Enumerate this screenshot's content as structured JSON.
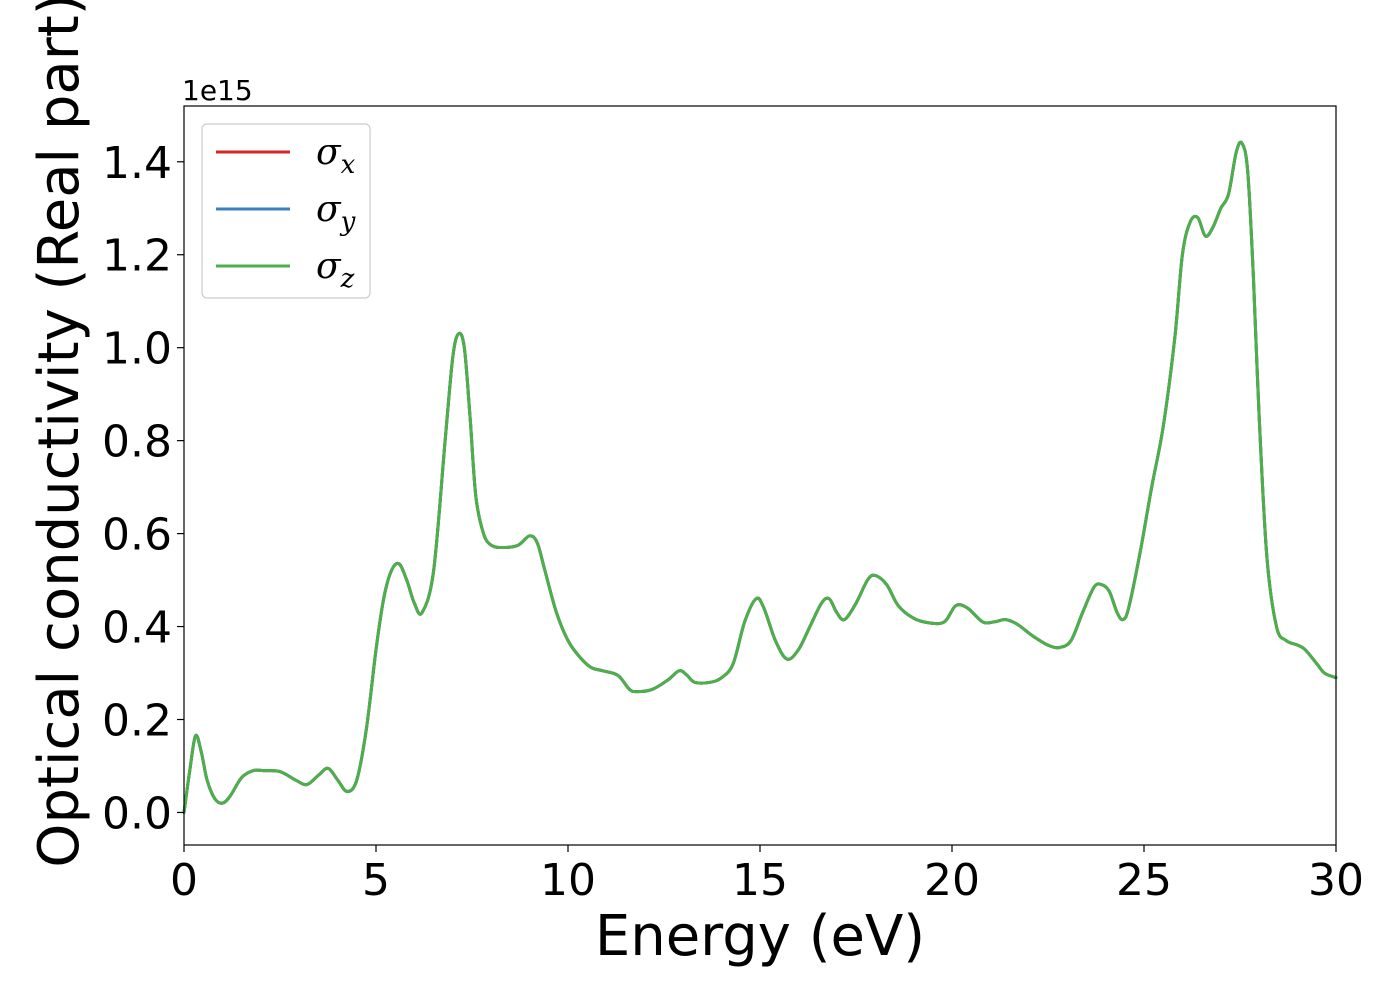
{
  "chart_data": {
    "type": "line",
    "xlabel": "Energy (eV)",
    "ylabel": "Optical conductivity (Real part)",
    "y_offset_text": "1e15",
    "xlim": [
      0,
      30
    ],
    "ylim": [
      -0.07,
      1.52
    ],
    "x_ticks": [
      0,
      5,
      10,
      15,
      20,
      25,
      30
    ],
    "x_tick_labels": [
      "0",
      "5",
      "10",
      "15",
      "20",
      "25",
      "30"
    ],
    "y_ticks": [
      0.0,
      0.2,
      0.4,
      0.6,
      0.8,
      1.0,
      1.2,
      1.4
    ],
    "y_tick_labels": [
      "0.0",
      "0.2",
      "0.4",
      "0.6",
      "0.8",
      "1.0",
      "1.2",
      "1.4"
    ],
    "grid": false,
    "legend_position": "top-left",
    "series": [
      {
        "name": "σ",
        "subscript": "x",
        "color": "#d62728",
        "x": [
          0,
          0.15,
          0.3,
          0.45,
          0.6,
          0.8,
          1.0,
          1.2,
          1.5,
          1.8,
          2.1,
          2.5,
          2.9,
          3.2,
          3.5,
          3.75,
          4.0,
          4.25,
          4.5,
          4.75,
          5.0,
          5.2,
          5.4,
          5.6,
          5.8,
          6.0,
          6.2,
          6.5,
          6.8,
          7.0,
          7.15,
          7.3,
          7.45,
          7.6,
          7.8,
          8.0,
          8.3,
          8.7,
          9.0,
          9.2,
          9.4,
          9.7,
          10.0,
          10.3,
          10.6,
          10.9,
          11.3,
          11.6,
          11.8,
          12.2,
          12.6,
          12.9,
          13.1,
          13.3,
          13.7,
          14.0,
          14.3,
          14.6,
          14.9,
          15.1,
          15.4,
          15.7,
          16.0,
          16.3,
          16.6,
          16.8,
          17.0,
          17.2,
          17.5,
          17.8,
          18.0,
          18.3,
          18.6,
          19.0,
          19.4,
          19.8,
          20.1,
          20.4,
          20.8,
          21.1,
          21.4,
          21.7,
          22.1,
          22.5,
          22.8,
          23.1,
          23.4,
          23.7,
          23.9,
          24.1,
          24.3,
          24.45,
          24.6,
          24.9,
          25.2,
          25.5,
          25.8,
          26.0,
          26.2,
          26.4,
          26.6,
          26.8,
          27.0,
          27.2,
          27.4,
          27.55,
          27.7,
          27.85,
          28.0,
          28.2,
          28.45,
          28.7,
          29.0,
          29.2,
          29.5,
          29.7,
          30.0
        ],
        "y": [
          0.0,
          0.09,
          0.165,
          0.13,
          0.07,
          0.03,
          0.02,
          0.035,
          0.075,
          0.09,
          0.09,
          0.088,
          0.07,
          0.06,
          0.08,
          0.095,
          0.07,
          0.045,
          0.07,
          0.18,
          0.35,
          0.46,
          0.52,
          0.535,
          0.5,
          0.45,
          0.43,
          0.52,
          0.8,
          0.98,
          1.03,
          1.0,
          0.85,
          0.68,
          0.6,
          0.575,
          0.57,
          0.575,
          0.595,
          0.58,
          0.52,
          0.43,
          0.37,
          0.335,
          0.312,
          0.305,
          0.295,
          0.265,
          0.26,
          0.265,
          0.285,
          0.305,
          0.295,
          0.28,
          0.28,
          0.29,
          0.32,
          0.41,
          0.46,
          0.44,
          0.37,
          0.33,
          0.35,
          0.4,
          0.45,
          0.46,
          0.43,
          0.415,
          0.45,
          0.5,
          0.51,
          0.49,
          0.445,
          0.418,
          0.408,
          0.41,
          0.445,
          0.44,
          0.41,
          0.41,
          0.415,
          0.405,
          0.38,
          0.36,
          0.355,
          0.37,
          0.43,
          0.485,
          0.49,
          0.475,
          0.43,
          0.415,
          0.44,
          0.56,
          0.7,
          0.83,
          1.02,
          1.2,
          1.27,
          1.28,
          1.24,
          1.26,
          1.3,
          1.33,
          1.42,
          1.44,
          1.38,
          1.15,
          0.85,
          0.55,
          0.4,
          0.37,
          0.36,
          0.35,
          0.32,
          0.3,
          0.29
        ]
      },
      {
        "name": "σ",
        "subscript": "y",
        "color": "#3a7fbf",
        "x": [
          0,
          0.15,
          0.3,
          0.45,
          0.6,
          0.8,
          1.0,
          1.2,
          1.5,
          1.8,
          2.1,
          2.5,
          2.9,
          3.2,
          3.5,
          3.75,
          4.0,
          4.25,
          4.5,
          4.75,
          5.0,
          5.2,
          5.4,
          5.6,
          5.8,
          6.0,
          6.2,
          6.5,
          6.8,
          7.0,
          7.15,
          7.3,
          7.45,
          7.6,
          7.8,
          8.0,
          8.3,
          8.7,
          9.0,
          9.2,
          9.4,
          9.7,
          10.0,
          10.3,
          10.6,
          10.9,
          11.3,
          11.6,
          11.8,
          12.2,
          12.6,
          12.9,
          13.1,
          13.3,
          13.7,
          14.0,
          14.3,
          14.6,
          14.9,
          15.1,
          15.4,
          15.7,
          16.0,
          16.3,
          16.6,
          16.8,
          17.0,
          17.2,
          17.5,
          17.8,
          18.0,
          18.3,
          18.6,
          19.0,
          19.4,
          19.8,
          20.1,
          20.4,
          20.8,
          21.1,
          21.4,
          21.7,
          22.1,
          22.5,
          22.8,
          23.1,
          23.4,
          23.7,
          23.9,
          24.1,
          24.3,
          24.45,
          24.6,
          24.9,
          25.2,
          25.5,
          25.8,
          26.0,
          26.2,
          26.4,
          26.6,
          26.8,
          27.0,
          27.2,
          27.4,
          27.55,
          27.7,
          27.85,
          28.0,
          28.2,
          28.45,
          28.7,
          29.0,
          29.2,
          29.5,
          29.7,
          30.0
        ],
        "y": [
          0.0,
          0.09,
          0.165,
          0.13,
          0.07,
          0.03,
          0.02,
          0.035,
          0.075,
          0.09,
          0.09,
          0.088,
          0.07,
          0.06,
          0.08,
          0.095,
          0.07,
          0.045,
          0.07,
          0.18,
          0.35,
          0.46,
          0.52,
          0.535,
          0.5,
          0.45,
          0.43,
          0.52,
          0.8,
          0.98,
          1.03,
          1.0,
          0.85,
          0.68,
          0.6,
          0.575,
          0.57,
          0.575,
          0.595,
          0.58,
          0.52,
          0.43,
          0.37,
          0.335,
          0.312,
          0.305,
          0.295,
          0.265,
          0.26,
          0.265,
          0.285,
          0.305,
          0.295,
          0.28,
          0.28,
          0.29,
          0.32,
          0.41,
          0.46,
          0.44,
          0.37,
          0.33,
          0.35,
          0.4,
          0.45,
          0.46,
          0.43,
          0.415,
          0.45,
          0.5,
          0.51,
          0.49,
          0.445,
          0.418,
          0.408,
          0.41,
          0.445,
          0.44,
          0.41,
          0.41,
          0.415,
          0.405,
          0.38,
          0.36,
          0.355,
          0.37,
          0.43,
          0.485,
          0.49,
          0.475,
          0.43,
          0.415,
          0.44,
          0.56,
          0.7,
          0.83,
          1.02,
          1.2,
          1.27,
          1.28,
          1.24,
          1.26,
          1.3,
          1.33,
          1.42,
          1.44,
          1.38,
          1.15,
          0.85,
          0.55,
          0.4,
          0.37,
          0.36,
          0.35,
          0.32,
          0.3,
          0.29
        ]
      },
      {
        "name": "σ",
        "subscript": "z",
        "color": "#4daf4a",
        "x": [
          0,
          0.15,
          0.3,
          0.45,
          0.6,
          0.8,
          1.0,
          1.2,
          1.5,
          1.8,
          2.1,
          2.5,
          2.9,
          3.2,
          3.5,
          3.75,
          4.0,
          4.25,
          4.5,
          4.75,
          5.0,
          5.2,
          5.4,
          5.6,
          5.8,
          6.0,
          6.2,
          6.5,
          6.8,
          7.0,
          7.15,
          7.3,
          7.45,
          7.6,
          7.8,
          8.0,
          8.3,
          8.7,
          9.0,
          9.2,
          9.4,
          9.7,
          10.0,
          10.3,
          10.6,
          10.9,
          11.3,
          11.6,
          11.8,
          12.2,
          12.6,
          12.9,
          13.1,
          13.3,
          13.7,
          14.0,
          14.3,
          14.6,
          14.9,
          15.1,
          15.4,
          15.7,
          16.0,
          16.3,
          16.6,
          16.8,
          17.0,
          17.2,
          17.5,
          17.8,
          18.0,
          18.3,
          18.6,
          19.0,
          19.4,
          19.8,
          20.1,
          20.4,
          20.8,
          21.1,
          21.4,
          21.7,
          22.1,
          22.5,
          22.8,
          23.1,
          23.4,
          23.7,
          23.9,
          24.1,
          24.3,
          24.45,
          24.6,
          24.9,
          25.2,
          25.5,
          25.8,
          26.0,
          26.2,
          26.4,
          26.6,
          26.8,
          27.0,
          27.2,
          27.4,
          27.55,
          27.7,
          27.85,
          28.0,
          28.2,
          28.45,
          28.7,
          29.0,
          29.2,
          29.5,
          29.7,
          30.0
        ],
        "y": [
          0.0,
          0.09,
          0.165,
          0.13,
          0.07,
          0.03,
          0.02,
          0.035,
          0.075,
          0.09,
          0.09,
          0.088,
          0.07,
          0.06,
          0.08,
          0.095,
          0.07,
          0.045,
          0.07,
          0.18,
          0.35,
          0.46,
          0.52,
          0.535,
          0.5,
          0.45,
          0.43,
          0.52,
          0.8,
          0.98,
          1.03,
          1.0,
          0.85,
          0.68,
          0.6,
          0.575,
          0.57,
          0.575,
          0.595,
          0.58,
          0.52,
          0.43,
          0.37,
          0.335,
          0.312,
          0.305,
          0.295,
          0.265,
          0.26,
          0.265,
          0.285,
          0.305,
          0.295,
          0.28,
          0.28,
          0.29,
          0.32,
          0.41,
          0.46,
          0.44,
          0.37,
          0.33,
          0.35,
          0.4,
          0.45,
          0.46,
          0.43,
          0.415,
          0.45,
          0.5,
          0.51,
          0.49,
          0.445,
          0.418,
          0.408,
          0.41,
          0.445,
          0.44,
          0.41,
          0.41,
          0.415,
          0.405,
          0.38,
          0.36,
          0.355,
          0.37,
          0.43,
          0.485,
          0.49,
          0.475,
          0.43,
          0.415,
          0.44,
          0.56,
          0.7,
          0.83,
          1.02,
          1.2,
          1.27,
          1.28,
          1.24,
          1.26,
          1.3,
          1.33,
          1.42,
          1.44,
          1.38,
          1.15,
          0.85,
          0.55,
          0.4,
          0.37,
          0.36,
          0.35,
          0.32,
          0.3,
          0.29
        ]
      }
    ]
  }
}
